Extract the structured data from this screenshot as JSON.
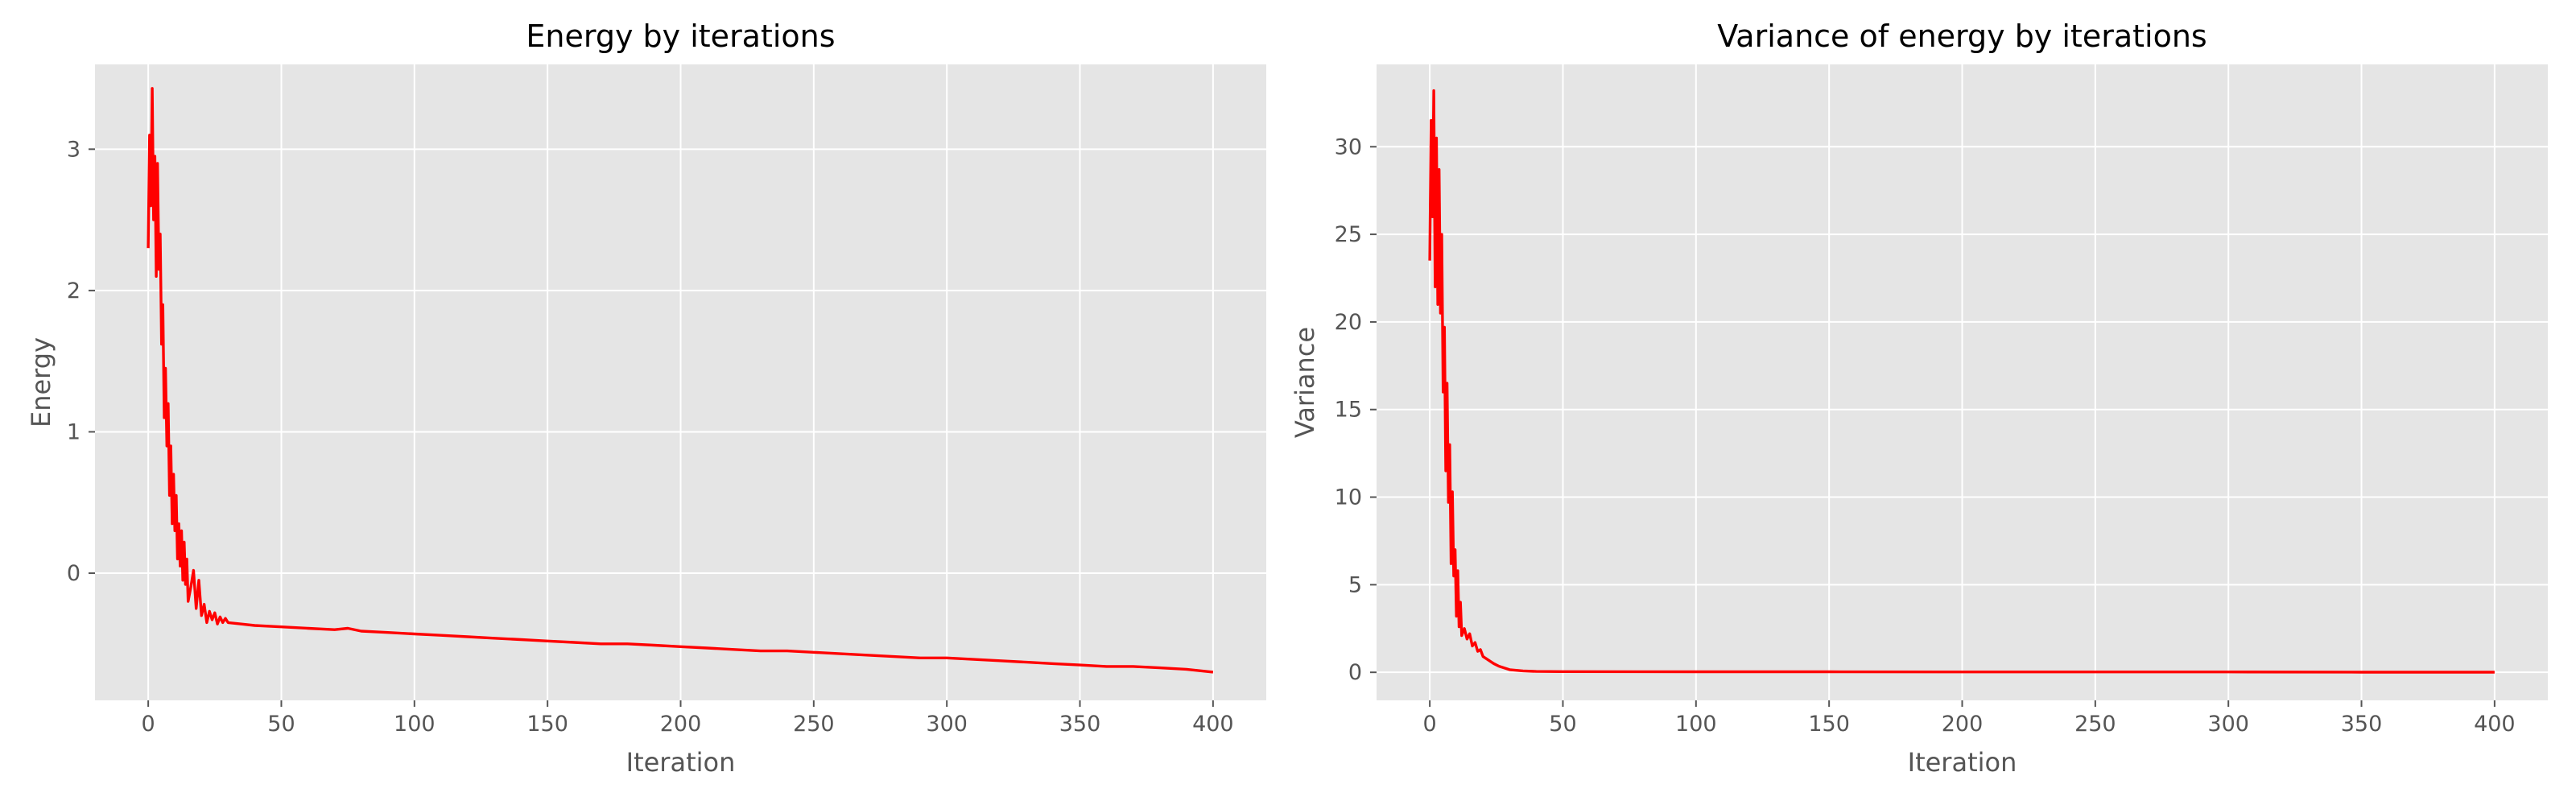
{
  "chart_data": [
    {
      "type": "line",
      "title": "Energy by iterations",
      "xlabel": "Iteration",
      "ylabel": "Energy",
      "xlim": [
        -20,
        420
      ],
      "ylim": [
        -0.9,
        3.6
      ],
      "xticks": [
        0,
        50,
        100,
        150,
        200,
        250,
        300,
        350,
        400
      ],
      "yticks": [
        0,
        1,
        2,
        3
      ],
      "grid": true,
      "series": [
        {
          "color": "#ff0000",
          "x": [
            0,
            0.5,
            1,
            1.5,
            2,
            2.5,
            3,
            3.5,
            4,
            4.5,
            5,
            5.5,
            6,
            6.5,
            7,
            7.5,
            8,
            8.5,
            9,
            9.5,
            10,
            10.5,
            11,
            11.5,
            12,
            12.5,
            13,
            13.5,
            14,
            14.5,
            15,
            16,
            17,
            18,
            19,
            20,
            21,
            22,
            23,
            24,
            25,
            26,
            27,
            28,
            29,
            30,
            35,
            40,
            50,
            60,
            70,
            75,
            80,
            90,
            100,
            110,
            120,
            130,
            140,
            150,
            160,
            170,
            180,
            190,
            200,
            210,
            220,
            230,
            240,
            250,
            260,
            270,
            280,
            290,
            300,
            310,
            320,
            330,
            340,
            350,
            360,
            370,
            380,
            390,
            400
          ],
          "y": [
            2.3,
            3.1,
            2.6,
            3.43,
            2.5,
            2.95,
            2.1,
            2.9,
            2.15,
            2.4,
            1.62,
            1.9,
            1.1,
            1.45,
            0.9,
            1.2,
            0.55,
            0.9,
            0.35,
            0.7,
            0.3,
            0.55,
            0.1,
            0.35,
            0.05,
            0.3,
            -0.05,
            0.22,
            -0.08,
            0.1,
            -0.2,
            -0.1,
            0.02,
            -0.25,
            -0.05,
            -0.3,
            -0.22,
            -0.35,
            -0.27,
            -0.33,
            -0.28,
            -0.36,
            -0.31,
            -0.35,
            -0.32,
            -0.35,
            -0.36,
            -0.37,
            -0.38,
            -0.39,
            -0.4,
            -0.39,
            -0.41,
            -0.42,
            -0.43,
            -0.44,
            -0.45,
            -0.46,
            -0.47,
            -0.48,
            -0.49,
            -0.5,
            -0.5,
            -0.51,
            -0.52,
            -0.53,
            -0.54,
            -0.55,
            -0.55,
            -0.56,
            -0.57,
            -0.58,
            -0.59,
            -0.6,
            -0.6,
            -0.61,
            -0.62,
            -0.63,
            -0.64,
            -0.65,
            -0.66,
            -0.66,
            -0.67,
            -0.68,
            -0.7
          ]
        }
      ]
    },
    {
      "type": "line",
      "title": "Variance of energy by iterations",
      "xlabel": "Iteration",
      "ylabel": "Variance",
      "xlim": [
        -20,
        420
      ],
      "ylim": [
        -1.6,
        34.7
      ],
      "xticks": [
        0,
        50,
        100,
        150,
        200,
        250,
        300,
        350,
        400
      ],
      "yticks": [
        0,
        5,
        10,
        15,
        20,
        25,
        30
      ],
      "grid": true,
      "series": [
        {
          "color": "#ff0000",
          "x": [
            0,
            0.5,
            1,
            1.5,
            2,
            2.5,
            3,
            3.5,
            4,
            4.5,
            5,
            5.5,
            6,
            6.5,
            7,
            7.5,
            8,
            8.5,
            9,
            9.5,
            10,
            10.5,
            11,
            11.5,
            12,
            13,
            14,
            15,
            16,
            17,
            18,
            19,
            20,
            22,
            24,
            26,
            28,
            30,
            35,
            40,
            50,
            100,
            150,
            200,
            250,
            300,
            350,
            400
          ],
          "y": [
            23.5,
            31.5,
            26.0,
            33.2,
            22.0,
            30.5,
            21.0,
            28.7,
            20.5,
            25.0,
            16.0,
            19.7,
            11.5,
            16.5,
            9.7,
            13.0,
            6.2,
            10.3,
            5.5,
            7.0,
            3.2,
            5.8,
            2.6,
            4.0,
            2.1,
            2.5,
            1.9,
            2.2,
            1.5,
            1.7,
            1.2,
            1.3,
            0.9,
            0.7,
            0.5,
            0.35,
            0.25,
            0.15,
            0.08,
            0.05,
            0.04,
            0.03,
            0.03,
            0.02,
            0.02,
            0.02,
            0.01,
            0.01
          ]
        }
      ]
    }
  ]
}
